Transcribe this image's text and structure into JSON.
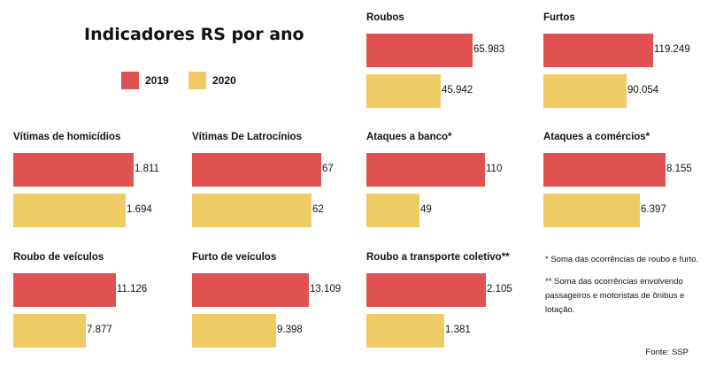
{
  "chart_data": {
    "type": "bar",
    "title": "Indicadores RS por ano",
    "legend": [
      {
        "name": "2019",
        "color": "#e05252"
      },
      {
        "name": "2020",
        "color": "#efcb66"
      }
    ],
    "panels": [
      {
        "title": "Roubos",
        "values": [
          65983,
          45942
        ],
        "labels": [
          "65.983",
          "45.942"
        ],
        "max": 80000
      },
      {
        "title": "Furtos",
        "values": [
          119249,
          90054
        ],
        "labels": [
          "119.249",
          "90.054"
        ],
        "max": 140000
      },
      {
        "title": "Vítimas de homicídios",
        "values": [
          1811,
          1694
        ],
        "labels": [
          "1.811",
          "1.694"
        ],
        "max": 1940
      },
      {
        "title": "Vítimas De Latrocínios",
        "values": [
          67,
          62
        ],
        "labels": [
          "67",
          "62"
        ],
        "max": 67
      },
      {
        "title": "Ataques a banco*",
        "values": [
          110,
          49
        ],
        "labels": [
          "110",
          "49"
        ],
        "max": 120
      },
      {
        "title": "Ataques a comércios*",
        "values": [
          8155,
          6397
        ],
        "labels": [
          "8.155",
          "6.397"
        ],
        "max": 8600
      },
      {
        "title": "Roubo de veículos",
        "values": [
          11126,
          7877
        ],
        "labels": [
          "11.126",
          "7.877"
        ],
        "max": 14000
      },
      {
        "title": "Furto de veículos",
        "values": [
          13109,
          9398
        ],
        "labels": [
          "13.109",
          "9.398"
        ],
        "max": 14500
      },
      {
        "title": "Roubo a transporte coletivo**",
        "values": [
          2105,
          1381
        ],
        "labels": [
          "2.105",
          "1.381"
        ],
        "max": 2280
      }
    ],
    "notes": [
      "* Soma das ocorrências de roubo e furto.",
      "** Soma das ocorrências envolvendo passageiros e motoristas de ônibus e lotação."
    ],
    "source": "Fonte: SSP"
  }
}
